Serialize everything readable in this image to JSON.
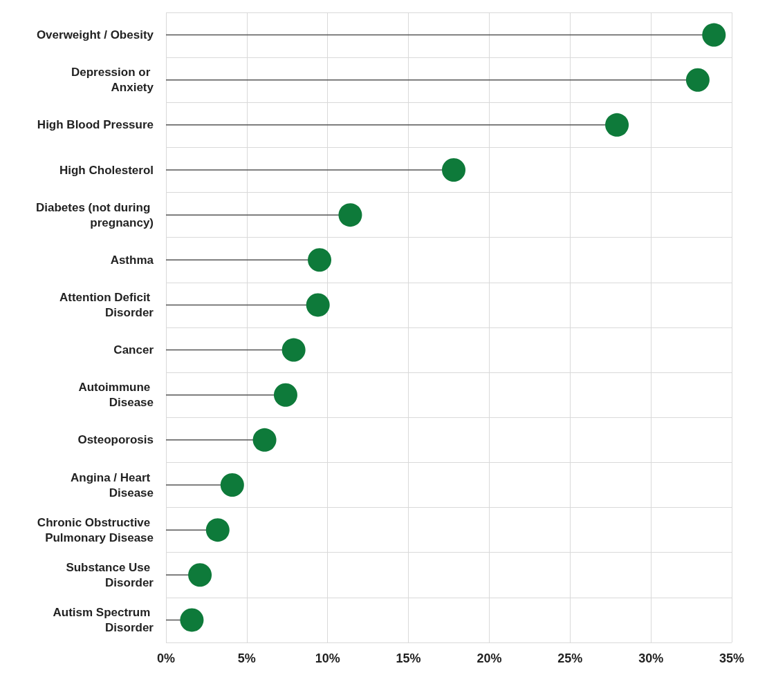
{
  "chart_data": {
    "type": "lollipop",
    "orientation": "horizontal",
    "categories": [
      "Overweight / Obesity",
      "Depression or Anxiety",
      "High Blood Pressure",
      "High Cholesterol",
      "Diabetes (not during pregnancy)",
      "Asthma",
      "Attention Deficit Disorder",
      "Cancer",
      "Autoimmune Disease",
      "Osteoporosis",
      "Angina / Heart Disease",
      "Chronic Obstructive Pulmonary Disease",
      "Substance Use Disorder",
      "Autism Spectrum Disorder"
    ],
    "values": [
      33.9,
      32.9,
      27.9,
      17.8,
      11.4,
      9.5,
      9.4,
      7.9,
      7.4,
      6.1,
      4.1,
      3.2,
      2.1,
      1.6
    ],
    "color": "#0e7a3a",
    "xlim": [
      0,
      35
    ],
    "xticks": [
      {
        "value": 0,
        "label": "0%"
      },
      {
        "value": 5,
        "label": "5%"
      },
      {
        "value": 10,
        "label": "10%"
      },
      {
        "value": 15,
        "label": "15%"
      },
      {
        "value": 20,
        "label": "20%"
      },
      {
        "value": 25,
        "label": "25%"
      },
      {
        "value": 30,
        "label": "30%"
      },
      {
        "value": 35,
        "label": "35%"
      }
    ],
    "grid": true,
    "marker": "circle"
  }
}
